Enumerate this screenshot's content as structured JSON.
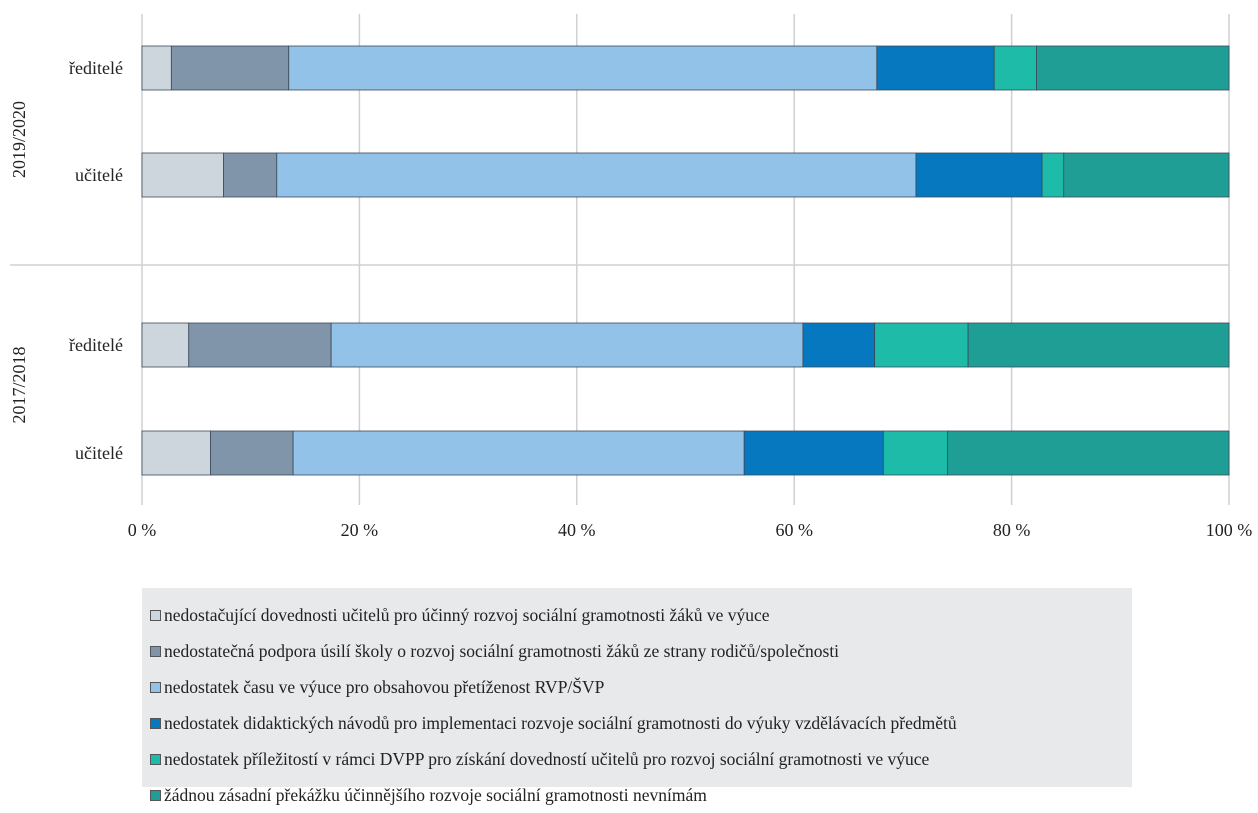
{
  "chart_data": {
    "type": "bar",
    "orientation": "horizontal",
    "stacked": "percent",
    "groups": [
      {
        "label": "2019/2020",
        "categories": [
          "ředitelé",
          "učitelé"
        ]
      },
      {
        "label": "2017/2018",
        "categories": [
          "ředitelé",
          "učitelé"
        ]
      }
    ],
    "series": [
      {
        "name": "nedostačující dovednosti učitelů pro účinný rozvoj sociální gramotnosti žáků ve výuce",
        "color": "#cdd5dd",
        "values": [
          2.7,
          7.5,
          4.3,
          6.3
        ]
      },
      {
        "name": "nedostatečná podpora úsilí školy o rozvoj sociální gramotnosti žáků ze strany rodičů/společnosti",
        "color": "#8094aa",
        "values": [
          10.8,
          4.9,
          13.1,
          7.6
        ]
      },
      {
        "name": "nedostatek času ve výuce pro obsahovou přetíženost RVP/ŠVP",
        "color": "#92c2e8",
        "values": [
          54.1,
          58.8,
          43.4,
          41.5
        ]
      },
      {
        "name": "nedostatek didaktických návodů pro implementaci rozvoje sociální gramotnosti do výuky vzdělávacích předmětů",
        "color": "#0578bf",
        "values": [
          10.8,
          11.6,
          6.6,
          12.8
        ]
      },
      {
        "name": "nedostatek příležitostí v rámci DVPP pro získání dovedností učitelů pro rozvoj sociální gramotnosti ve výuce",
        "color": "#1dbba8",
        "values": [
          3.9,
          2.0,
          8.6,
          5.9
        ]
      },
      {
        "name": "žádnou zásadní překážku účinnějšího rozvoje sociální gramotnosti nevnímám",
        "color": "#1f9e96",
        "values": [
          17.7,
          15.2,
          24.0,
          25.9
        ]
      }
    ],
    "xaxis": {
      "ticks": [
        "0 %",
        "20 %",
        "40 %",
        "60 %",
        "80 %",
        "100 %"
      ],
      "range": [
        0,
        100
      ]
    },
    "grid": true,
    "legend_position": "bottom"
  }
}
